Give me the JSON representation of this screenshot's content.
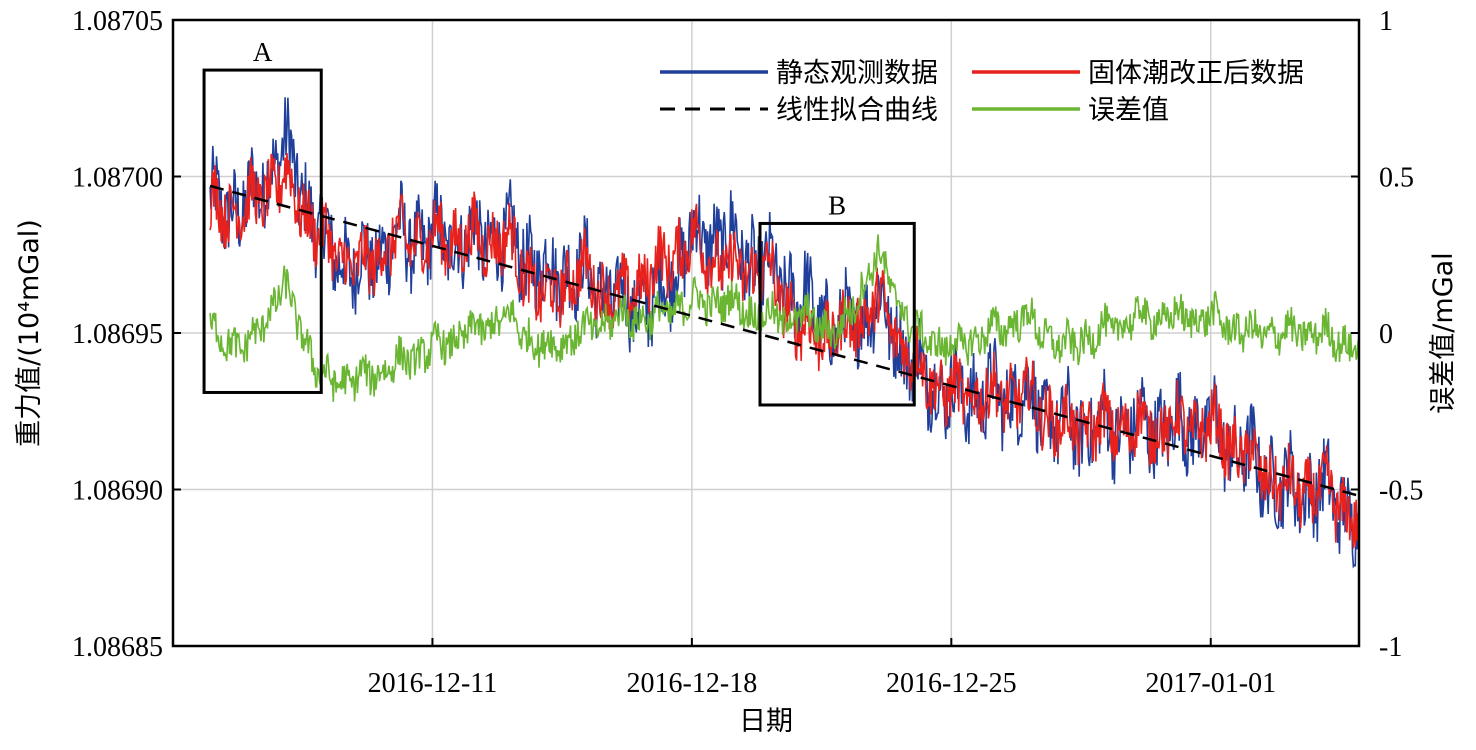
{
  "chart_data": {
    "type": "line",
    "xlabel": "日期",
    "ylabel_left": "重力值/(10⁴mGal)",
    "ylabel_right": "误差值/mGal",
    "x_start": "2016-12-04",
    "x_end": "2017-01-05",
    "x_ticks": [
      "2016-12-11",
      "2016-12-18",
      "2016-12-25",
      "2017-01-01"
    ],
    "y_left_range": [
      1.08685,
      1.08705
    ],
    "y_left_ticks": [
      "1.08685",
      "1.08690",
      "1.08695",
      "1.08700",
      "1.08705"
    ],
    "y_right_range": [
      -1,
      1
    ],
    "y_right_ticks": [
      "-1",
      "-0.5",
      "0",
      "0.5",
      "1"
    ],
    "grid": true,
    "legend_position": "top-right",
    "series": [
      {
        "name": "静态观测数据",
        "color": "#1f3f9a",
        "axis": "left",
        "dates": [
          "2016-12-05",
          "2016-12-06",
          "2016-12-07",
          "2016-12-08",
          "2016-12-09",
          "2016-12-10",
          "2016-12-11",
          "2016-12-12",
          "2016-12-13",
          "2016-12-14",
          "2016-12-15",
          "2016-12-16",
          "2016-12-17",
          "2016-12-18",
          "2016-12-19",
          "2016-12-20",
          "2016-12-21",
          "2016-12-22",
          "2016-12-23",
          "2016-12-24",
          "2016-12-25",
          "2016-12-26",
          "2016-12-27",
          "2016-12-28",
          "2016-12-29",
          "2016-12-30",
          "2016-12-31",
          "2017-01-01",
          "2017-01-02",
          "2017-01-03",
          "2017-01-04",
          "2017-01-05"
        ],
        "values": [
          1.08699,
          1.08699,
          1.08701,
          1.08698,
          1.08697,
          1.08698,
          1.08698,
          1.08698,
          1.08698,
          1.08697,
          1.08697,
          1.08696,
          1.08696,
          1.08698,
          1.08698,
          1.08697,
          1.08696,
          1.08695,
          1.08696,
          1.08694,
          1.08693,
          1.08693,
          1.08693,
          1.08692,
          1.08692,
          1.08692,
          1.08692,
          1.08692,
          1.08691,
          1.0869,
          1.0869,
          1.08689
        ]
      },
      {
        "name": "固体潮改正后数据",
        "color": "#e8211c",
        "axis": "left",
        "dates": [
          "2016-12-05",
          "2016-12-06",
          "2016-12-07",
          "2016-12-08",
          "2016-12-09",
          "2016-12-10",
          "2016-12-11",
          "2016-12-12",
          "2016-12-13",
          "2016-12-14",
          "2016-12-15",
          "2016-12-16",
          "2016-12-17",
          "2016-12-18",
          "2016-12-19",
          "2016-12-20",
          "2016-12-21",
          "2016-12-22",
          "2016-12-23",
          "2016-12-24",
          "2016-12-25",
          "2016-12-26",
          "2016-12-27",
          "2016-12-28",
          "2016-12-29",
          "2016-12-30",
          "2016-12-31",
          "2017-01-01",
          "2017-01-02",
          "2017-01-03",
          "2017-01-04",
          "2017-01-05"
        ],
        "values": [
          1.08699,
          1.08699,
          1.087,
          1.08698,
          1.08697,
          1.08698,
          1.08698,
          1.08698,
          1.08698,
          1.08696,
          1.08697,
          1.08696,
          1.08697,
          1.08698,
          1.08697,
          1.08697,
          1.08695,
          1.08695,
          1.08696,
          1.08694,
          1.08693,
          1.08693,
          1.08693,
          1.08692,
          1.08692,
          1.08692,
          1.08692,
          1.08692,
          1.08691,
          1.0869,
          1.0869,
          1.08689
        ]
      },
      {
        "name": "线性拟合曲线",
        "color": "#000000",
        "axis": "left",
        "style": "dashed",
        "dates": [
          "2016-12-05",
          "2017-01-05"
        ],
        "values": [
          1.086997,
          1.086898
        ]
      },
      {
        "name": "误差值",
        "color": "#6ab532",
        "axis": "right",
        "dates": [
          "2016-12-05",
          "2016-12-06",
          "2016-12-07",
          "2016-12-08",
          "2016-12-09",
          "2016-12-10",
          "2016-12-11",
          "2016-12-12",
          "2016-12-13",
          "2016-12-14",
          "2016-12-15",
          "2016-12-16",
          "2016-12-17",
          "2016-12-18",
          "2016-12-19",
          "2016-12-20",
          "2016-12-21",
          "2016-12-22",
          "2016-12-23",
          "2016-12-24",
          "2016-12-25",
          "2016-12-26",
          "2016-12-27",
          "2016-12-28",
          "2016-12-29",
          "2016-12-30",
          "2016-12-31",
          "2017-01-01",
          "2017-01-02",
          "2017-01-03",
          "2017-01-04",
          "2017-01-05"
        ],
        "values": [
          0.0,
          -0.05,
          0.15,
          -0.15,
          -0.15,
          -0.1,
          -0.05,
          0.0,
          0.05,
          -0.05,
          0.0,
          0.05,
          0.05,
          0.1,
          0.1,
          0.05,
          0.05,
          0.0,
          0.25,
          0.0,
          -0.05,
          0.0,
          0.05,
          -0.05,
          0.0,
          0.05,
          0.05,
          0.05,
          0.0,
          0.0,
          0.0,
          -0.05
        ]
      }
    ],
    "annotations": [
      {
        "label": "A",
        "x_range": [
          "2016-12-05",
          "2016-12-08"
        ],
        "y_range": [
          1.086931,
          1.087034
        ]
      },
      {
        "label": "B",
        "x_range": [
          "2016-12-20",
          "2016-12-24"
        ],
        "y_range": [
          1.086927,
          1.086985
        ]
      }
    ]
  }
}
